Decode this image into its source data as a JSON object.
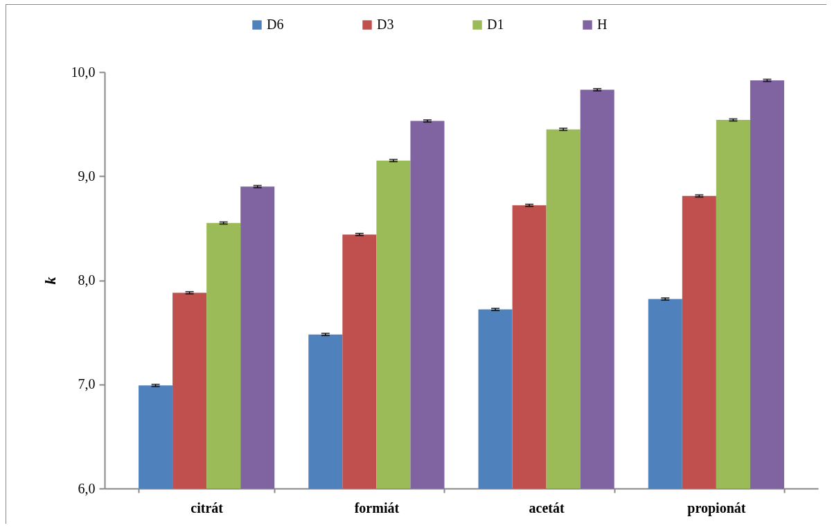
{
  "chart_data": {
    "type": "bar",
    "ylabel": "k",
    "categories": [
      "citrát",
      "formiát",
      "acetát",
      "propionát"
    ],
    "series": [
      {
        "name": "D6",
        "color": "#4f81bd",
        "values": [
          6.99,
          7.48,
          7.72,
          7.82
        ],
        "errors": [
          0.01,
          0.01,
          0.01,
          0.01
        ]
      },
      {
        "name": "D3",
        "color": "#c0504d",
        "values": [
          7.88,
          8.44,
          8.72,
          8.81
        ],
        "errors": [
          0.01,
          0.01,
          0.01,
          0.01
        ]
      },
      {
        "name": "D1",
        "color": "#9bbb59",
        "values": [
          8.55,
          9.15,
          9.45,
          9.54
        ],
        "errors": [
          0.01,
          0.01,
          0.01,
          0.01
        ]
      },
      {
        "name": "H",
        "color": "#8064a2",
        "values": [
          8.9,
          9.53,
          9.83,
          9.92
        ],
        "errors": [
          0.01,
          0.01,
          0.01,
          0.01
        ]
      }
    ],
    "ylim": [
      6,
      10
    ],
    "yticks": [
      {
        "value": 6,
        "label": "6,0"
      },
      {
        "value": 7,
        "label": "7,0"
      },
      {
        "value": 8,
        "label": "8,0"
      },
      {
        "value": 9,
        "label": "9,0"
      },
      {
        "value": 10,
        "label": "10,0"
      }
    ],
    "grid": false,
    "legend": "top"
  }
}
